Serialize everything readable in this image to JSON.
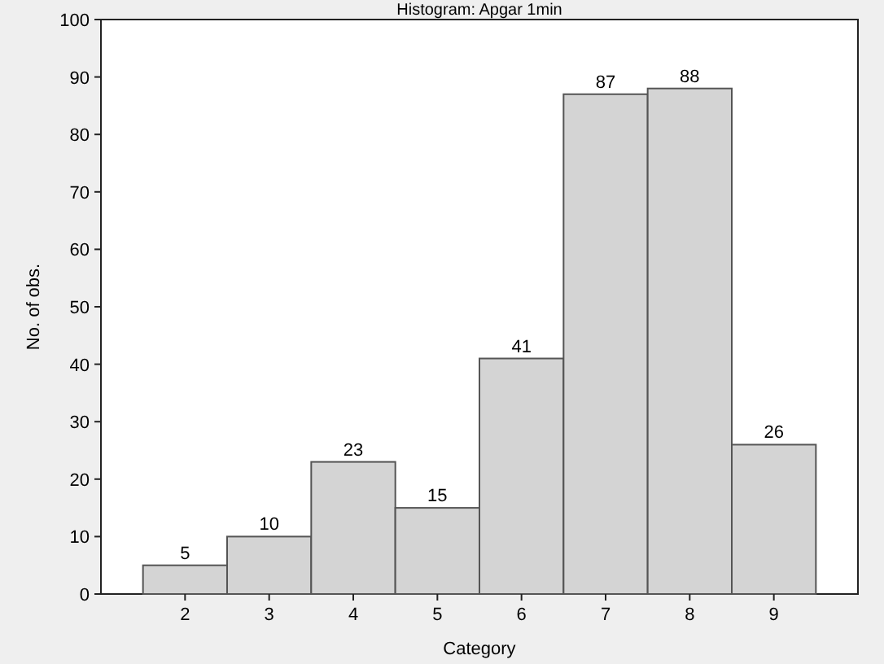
{
  "chart_data": {
    "type": "bar",
    "title": "Histogram: Apgar 1min",
    "xlabel": "Category",
    "ylabel": "No. of obs.",
    "categories": [
      "2",
      "3",
      "4",
      "5",
      "6",
      "7",
      "8",
      "9"
    ],
    "values": [
      5,
      10,
      23,
      15,
      41,
      87,
      88,
      26
    ],
    "color": "#d4d4d4",
    "ylim": [
      0,
      100
    ],
    "yticks": [
      0,
      10,
      20,
      30,
      40,
      50,
      60,
      70,
      80,
      90,
      100
    ],
    "data_labels": true,
    "grid": false
  }
}
